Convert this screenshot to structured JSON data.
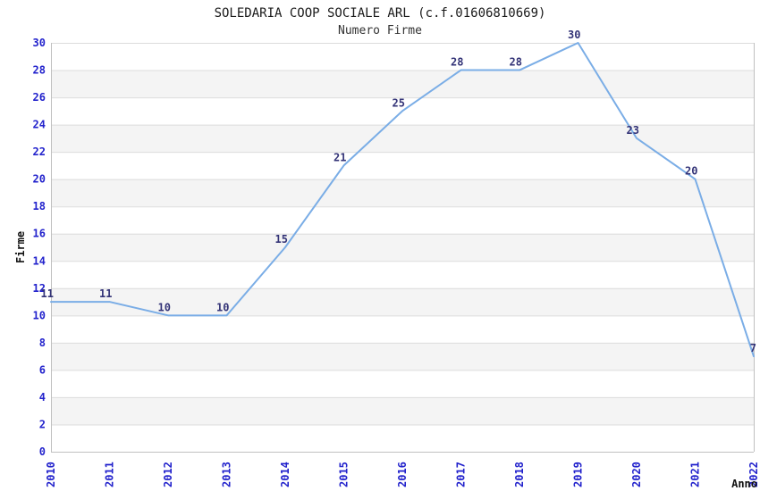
{
  "page": {
    "background": "#ffffff"
  },
  "chart_data": {
    "type": "line",
    "title": "SOLEDARIA COOP SOCIALE ARL (c.f.01606810669)",
    "subtitle": "Numero Firme",
    "xlabel": "Anno",
    "ylabel": "Firme",
    "categories": [
      "2010",
      "2011",
      "2012",
      "2013",
      "2014",
      "2015",
      "2016",
      "2017",
      "2018",
      "2019",
      "2020",
      "2021",
      "2022"
    ],
    "values": [
      11,
      11,
      10,
      10,
      15,
      21,
      25,
      28,
      28,
      30,
      23,
      20,
      7
    ],
    "data_labels_visible": true,
    "ylim": [
      0,
      30
    ],
    "ytick_step": 2,
    "yticks": [
      0,
      2,
      4,
      6,
      8,
      10,
      12,
      14,
      16,
      18,
      20,
      22,
      24,
      26,
      28,
      30
    ],
    "grid": "horizontal-bands-alternating",
    "legend": "none",
    "colors": {
      "line": "#7aade6",
      "tick_label": "#2222cc",
      "data_label": "#333377",
      "band_gray": "#f4f4f4",
      "gridline": "#dcdcdc",
      "frame": "#c0c0c0",
      "axis_title": "#111111",
      "title": "#1a1a1a",
      "subtitle": "#333333"
    }
  }
}
